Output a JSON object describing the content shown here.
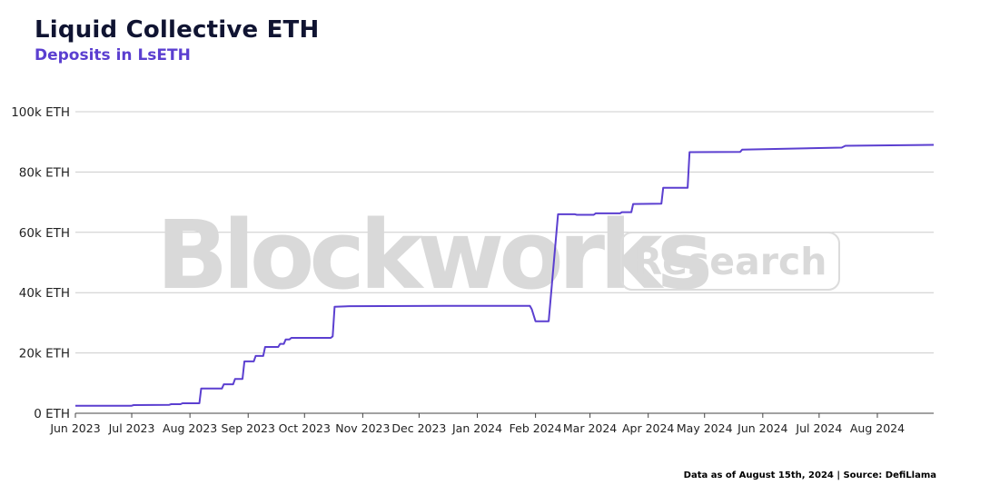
{
  "header": {
    "title": "Liquid Collective ETH",
    "subtitle": "Deposits in LsETH"
  },
  "watermark": {
    "brand": "Blockworks",
    "badge": "Research"
  },
  "footer": {
    "note": "Data as of August 15th, 2024 | Source: DefiLlama"
  },
  "colors": {
    "line": "#5b3fd0",
    "grid": "#cccccc",
    "title": "#101432"
  },
  "chart_data": {
    "type": "line",
    "x_start": "2023-06-01",
    "x_end": "2024-08-31",
    "ylim": [
      0,
      100000
    ],
    "y_ticks": [
      0,
      20000,
      40000,
      60000,
      80000,
      100000
    ],
    "y_tick_labels": [
      "0 ETH",
      "20k ETH",
      "40k ETH",
      "60k ETH",
      "80k ETH",
      "100k ETH"
    ],
    "x_ticks": [
      "2023-06-01",
      "2023-07-01",
      "2023-08-01",
      "2023-09-01",
      "2023-10-01",
      "2023-11-01",
      "2023-12-01",
      "2024-01-01",
      "2024-02-01",
      "2024-03-01",
      "2024-04-01",
      "2024-05-01",
      "2024-06-01",
      "2024-07-01",
      "2024-08-01"
    ],
    "x_tick_labels": [
      "Jun 2023",
      "Jul 2023",
      "Aug 2023",
      "Sep 2023",
      "Oct 2023",
      "Nov 2023",
      "Dec 2023",
      "Jan 2024",
      "Feb 2024",
      "Mar 2024",
      "Apr 2024",
      "May 2024",
      "Jun 2024",
      "Jul 2024",
      "Aug 2024"
    ],
    "grid": true,
    "series": [
      {
        "points": [
          [
            "2023-06-01",
            2500
          ],
          [
            "2023-07-01",
            2500
          ],
          [
            "2023-07-02",
            2700
          ],
          [
            "2023-07-21",
            2800
          ],
          [
            "2023-07-22",
            3000
          ],
          [
            "2023-07-27",
            3000
          ],
          [
            "2023-07-28",
            3300
          ],
          [
            "2023-08-06",
            3300
          ],
          [
            "2023-08-07",
            8200
          ],
          [
            "2023-08-18",
            8200
          ],
          [
            "2023-08-19",
            9600
          ],
          [
            "2023-08-24",
            9600
          ],
          [
            "2023-08-25",
            11400
          ],
          [
            "2023-08-29",
            11400
          ],
          [
            "2023-08-30",
            17200
          ],
          [
            "2023-09-04",
            17200
          ],
          [
            "2023-09-05",
            19000
          ],
          [
            "2023-09-09",
            19000
          ],
          [
            "2023-09-10",
            22000
          ],
          [
            "2023-09-17",
            22000
          ],
          [
            "2023-09-18",
            23000
          ],
          [
            "2023-09-20",
            23000
          ],
          [
            "2023-09-21",
            24500
          ],
          [
            "2023-09-23",
            24500
          ],
          [
            "2023-09-24",
            25000
          ],
          [
            "2023-10-15",
            25000
          ],
          [
            "2023-10-16",
            25500
          ],
          [
            "2023-10-17",
            35300
          ],
          [
            "2023-10-25",
            35500
          ],
          [
            "2023-12-15",
            35600
          ],
          [
            "2024-01-29",
            35600
          ],
          [
            "2024-01-30",
            34500
          ],
          [
            "2024-02-01",
            30500
          ],
          [
            "2024-02-08",
            30500
          ],
          [
            "2024-02-13",
            66000
          ],
          [
            "2024-02-22",
            66000
          ],
          [
            "2024-02-23",
            65800
          ],
          [
            "2024-03-03",
            65800
          ],
          [
            "2024-03-04",
            66300
          ],
          [
            "2024-03-17",
            66300
          ],
          [
            "2024-03-18",
            66700
          ],
          [
            "2024-03-23",
            66700
          ],
          [
            "2024-03-24",
            69400
          ],
          [
            "2024-04-08",
            69500
          ],
          [
            "2024-04-09",
            74800
          ],
          [
            "2024-04-22",
            74800
          ],
          [
            "2024-04-23",
            86600
          ],
          [
            "2024-05-20",
            86700
          ],
          [
            "2024-05-21",
            87400
          ],
          [
            "2024-07-13",
            88100
          ],
          [
            "2024-07-15",
            88700
          ],
          [
            "2024-08-31",
            89000
          ]
        ]
      }
    ]
  }
}
